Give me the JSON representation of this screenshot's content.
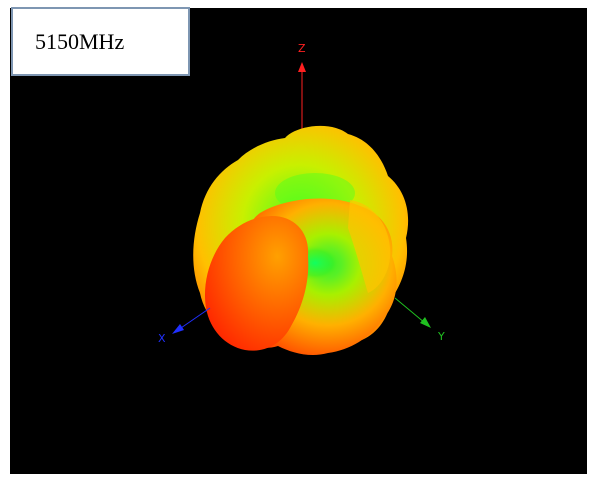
{
  "label": {
    "frequency": "5150MHz"
  },
  "axes": {
    "z_label": "Z",
    "x_label": "X",
    "y_label": "Y"
  },
  "colors": {
    "background": "#000000",
    "z_axis": "#ff2020",
    "x_axis": "#2030ff",
    "y_axis": "#20c020",
    "pattern_high": "#ff3000",
    "pattern_mid": "#ffd000",
    "pattern_low": "#20e020"
  }
}
